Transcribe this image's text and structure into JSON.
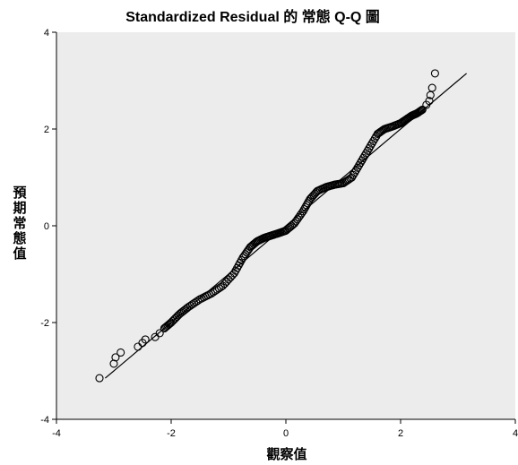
{
  "chart_data": {
    "type": "scatter",
    "title": "Standardized Residual 的 常態 Q-Q 圖",
    "xlabel": "觀察值",
    "ylabel": "預期常態值",
    "xlim": [
      -4,
      4
    ],
    "ylim": [
      -4,
      4
    ],
    "x_ticks": [
      "-4",
      "-2",
      "0",
      "2",
      "4"
    ],
    "y_ticks": [
      "4",
      "2",
      "0",
      "-2",
      "-4"
    ],
    "grid": false,
    "plot_background": "#ececec",
    "reference_line": {
      "x": [
        -3.15,
        3.15
      ],
      "y": [
        -3.15,
        3.15
      ]
    },
    "series": [
      {
        "marker": "open-circle",
        "x": [
          -3.25,
          -3.0,
          -2.97,
          -2.88,
          -2.58,
          -2.5,
          -2.45,
          -2.28,
          -2.2,
          -2.12,
          -2.0,
          -1.85,
          -1.7,
          -1.5,
          -1.3,
          -1.1,
          -0.9,
          -0.75,
          -0.62,
          -0.5,
          -0.38,
          -0.25,
          -0.12,
          0.0,
          0.15,
          0.3,
          0.42,
          0.55,
          0.7,
          0.85,
          1.0,
          1.15,
          1.3,
          1.45,
          1.6,
          1.72,
          1.85,
          2.0,
          2.1,
          2.2,
          2.28,
          2.38,
          2.45,
          2.5,
          2.52,
          2.55,
          2.6
        ],
        "y": [
          -3.15,
          -2.85,
          -2.72,
          -2.62,
          -2.5,
          -2.42,
          -2.35,
          -2.3,
          -2.22,
          -2.12,
          -2.0,
          -1.82,
          -1.68,
          -1.52,
          -1.4,
          -1.24,
          -0.98,
          -0.66,
          -0.44,
          -0.32,
          -0.25,
          -0.2,
          -0.15,
          -0.1,
          0.05,
          0.3,
          0.55,
          0.72,
          0.8,
          0.85,
          0.88,
          1.0,
          1.3,
          1.6,
          1.9,
          2.0,
          2.05,
          2.12,
          2.2,
          2.28,
          2.32,
          2.4,
          2.5,
          2.58,
          2.7,
          2.85,
          3.15
        ]
      }
    ]
  }
}
